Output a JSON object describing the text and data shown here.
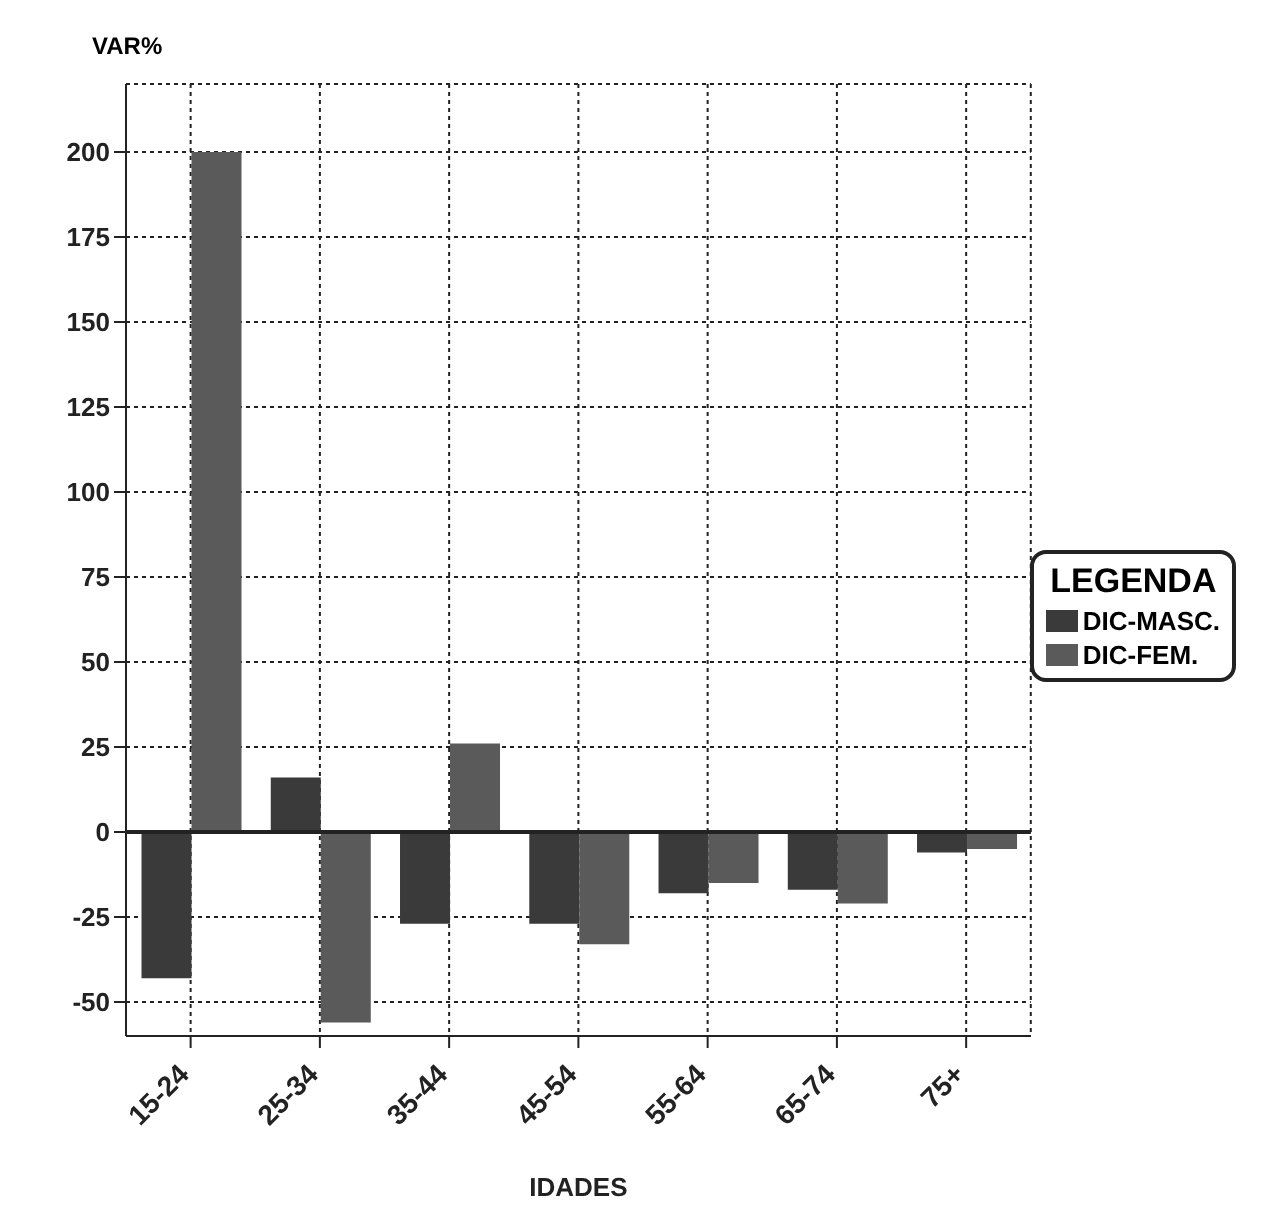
{
  "chart_data": {
    "type": "bar",
    "ylabel": "VAR%",
    "xlabel": "IDADES",
    "legend_title": "LEGENDA",
    "categories": [
      "15-24",
      "25-34",
      "35-44",
      "45-54",
      "55-64",
      "65-74",
      "75+"
    ],
    "series": [
      {
        "name": "DIC-MASC.",
        "color": "#3a3a3a",
        "values": [
          -43,
          16,
          -27,
          -27,
          -18,
          -17,
          -6
        ]
      },
      {
        "name": "DIC-FEM.",
        "color": "#5a5a5a",
        "values": [
          200,
          -56,
          26,
          -33,
          -15,
          -21,
          -5
        ]
      }
    ],
    "ylim": [
      -60,
      220
    ],
    "yticks": [
      -50,
      -25,
      0,
      25,
      50,
      75,
      100,
      125,
      150,
      175,
      200
    ],
    "grid": true,
    "legend": "right"
  }
}
